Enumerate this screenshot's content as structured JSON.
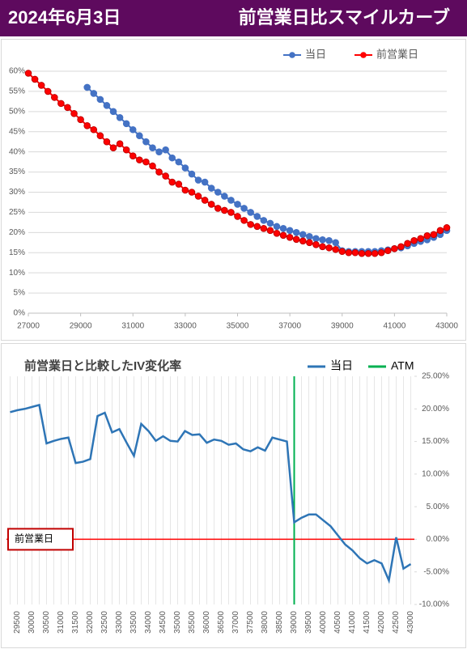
{
  "header": {
    "date": "2024年6月3日",
    "title": "前営業日比スマイルカーブ"
  },
  "chart_data": [
    {
      "type": "line",
      "xlim": [
        27000,
        43000
      ],
      "xticks": [
        27000,
        29000,
        31000,
        33000,
        35000,
        37000,
        39000,
        41000,
        43000
      ],
      "ylim": [
        0,
        60
      ],
      "yticks": [
        {
          "value": 0,
          "label": "0%"
        },
        {
          "value": 5,
          "label": "5%"
        },
        {
          "value": 10,
          "label": "10%"
        },
        {
          "value": 15,
          "label": "15%"
        },
        {
          "value": 20,
          "label": "20%"
        },
        {
          "value": 25,
          "label": "25%"
        },
        {
          "value": 30,
          "label": "30%"
        },
        {
          "value": 35,
          "label": "35%"
        },
        {
          "value": 40,
          "label": "40%"
        },
        {
          "value": 45,
          "label": "45%"
        },
        {
          "value": 50,
          "label": "50%"
        },
        {
          "value": 55,
          "label": "55%"
        },
        {
          "value": 60,
          "label": "60%"
        }
      ],
      "grid": true,
      "legend": "top",
      "series": [
        {
          "name": "当日",
          "color": "#4472c4",
          "x": [
            29250,
            29500,
            29750,
            30000,
            30250,
            30500,
            30750,
            31000,
            31250,
            31500,
            31750,
            32000,
            32250,
            32500,
            32750,
            33000,
            33250,
            33500,
            33750,
            34000,
            34250,
            34500,
            34750,
            35000,
            35250,
            35500,
            35750,
            36000,
            36250,
            36500,
            36750,
            37000,
            37250,
            37500,
            37750,
            38000,
            38250,
            38500,
            38750,
            39000,
            39250,
            39500,
            39750,
            40000,
            40250,
            40500,
            40750,
            41000,
            41250,
            41500,
            41750,
            42000,
            42250,
            42500,
            42750,
            43000
          ],
          "values": [
            56,
            54.5,
            53,
            51.5,
            50,
            48.5,
            47,
            45.5,
            44,
            42.5,
            41,
            40,
            40.5,
            38.5,
            37.5,
            36,
            34.5,
            33,
            32.5,
            31,
            30,
            29,
            28,
            27,
            26,
            25,
            24,
            23,
            22.3,
            21.5,
            21,
            20.5,
            20,
            19.5,
            19,
            18.5,
            18.2,
            18,
            17.5,
            15.5,
            15.3,
            15.3,
            15.3,
            15.3,
            15.3,
            15.5,
            15.7,
            16,
            16.2,
            16.7,
            17.3,
            17.8,
            18.2,
            18.8,
            19.5,
            20.5
          ]
        },
        {
          "name": "前営業日",
          "color": "#ff0000",
          "x": [
            27000,
            27250,
            27500,
            27750,
            28000,
            28250,
            28500,
            28750,
            29000,
            29250,
            29500,
            29750,
            30000,
            30250,
            30500,
            30750,
            31000,
            31250,
            31500,
            31750,
            32000,
            32250,
            32500,
            32750,
            33000,
            33250,
            33500,
            33750,
            34000,
            34250,
            34500,
            34750,
            35000,
            35250,
            35500,
            35750,
            36000,
            36250,
            36500,
            36750,
            37000,
            37250,
            37500,
            37750,
            38000,
            38250,
            38500,
            38750,
            39000,
            39250,
            39500,
            39750,
            40000,
            40250,
            40500,
            40750,
            41000,
            41250,
            41500,
            41750,
            42000,
            42250,
            42500,
            42750,
            43000
          ],
          "values": [
            59.5,
            58,
            56.5,
            55,
            53.5,
            52,
            51,
            49.5,
            48,
            46.5,
            45.5,
            44,
            42.5,
            41,
            42,
            40.5,
            39,
            38,
            37.5,
            36.5,
            35,
            34,
            32.5,
            32,
            30.5,
            30,
            29,
            28,
            27,
            26,
            25.5,
            25,
            24,
            23,
            22,
            21.5,
            21,
            20.5,
            19.8,
            19.3,
            18.8,
            18.3,
            17.9,
            17.5,
            17,
            16.5,
            16.2,
            15.8,
            15.3,
            15,
            15,
            14.8,
            14.8,
            14.8,
            15,
            15.5,
            16,
            16.5,
            17.3,
            18,
            18.5,
            19.2,
            19.5,
            20.5,
            21.2
          ]
        }
      ]
    },
    {
      "type": "line",
      "title": "前営業日と比較したIV変化率",
      "categories": [
        null,
        29500,
        null,
        30000,
        null,
        30500,
        null,
        31000,
        null,
        31500,
        null,
        32000,
        null,
        32500,
        null,
        33000,
        null,
        33500,
        null,
        34000,
        null,
        34500,
        null,
        35000,
        null,
        35500,
        null,
        36000,
        null,
        36500,
        null,
        37000,
        null,
        37500,
        null,
        38000,
        null,
        38500,
        null,
        39000,
        null,
        39500,
        null,
        40000,
        null,
        40500,
        null,
        41000,
        null,
        41500,
        null,
        42000,
        null,
        42500,
        null,
        43000
      ],
      "ylim": [
        -10,
        25
      ],
      "yticks": [
        {
          "value": 25,
          "label": "25.00%"
        },
        {
          "value": 20,
          "label": "20.00%"
        },
        {
          "value": 15,
          "label": "15.00%"
        },
        {
          "value": 10,
          "label": "10.00%"
        },
        {
          "value": 5,
          "label": "5.00%"
        },
        {
          "value": 0,
          "label": "0.00%"
        },
        {
          "value": -5,
          "label": "-5.00%"
        },
        {
          "value": -10,
          "label": "-10.00%"
        }
      ],
      "grid": true,
      "legend": "top-right",
      "series": [
        {
          "name": "当日",
          "color": "#2e75b6",
          "values": [
            19.5,
            19.8,
            20.0,
            20.3,
            20.6,
            14.7,
            15.1,
            15.4,
            15.6,
            11.7,
            11.9,
            12.3,
            18.9,
            19.4,
            16.4,
            16.9,
            14.8,
            12.8,
            17.7,
            16.6,
            15.1,
            15.8,
            15.1,
            15.0,
            16.6,
            16.0,
            16.1,
            14.8,
            15.3,
            15.1,
            14.5,
            14.7,
            13.8,
            13.5,
            14.1,
            13.6,
            15.6,
            15.3,
            15.0,
            2.6,
            3.3,
            3.8,
            3.8,
            2.9,
            2.0,
            0.6,
            -0.8,
            -1.7,
            -2.9,
            -3.7,
            -3.2,
            -3.7,
            -6.3,
            0.3,
            -4.5,
            -3.8
          ]
        }
      ],
      "atm": {
        "name": "ATM",
        "color": "#00b050",
        "category": 39000
      },
      "reference": {
        "text": "前営業日",
        "value": 0,
        "color": "#ff0000"
      }
    }
  ]
}
